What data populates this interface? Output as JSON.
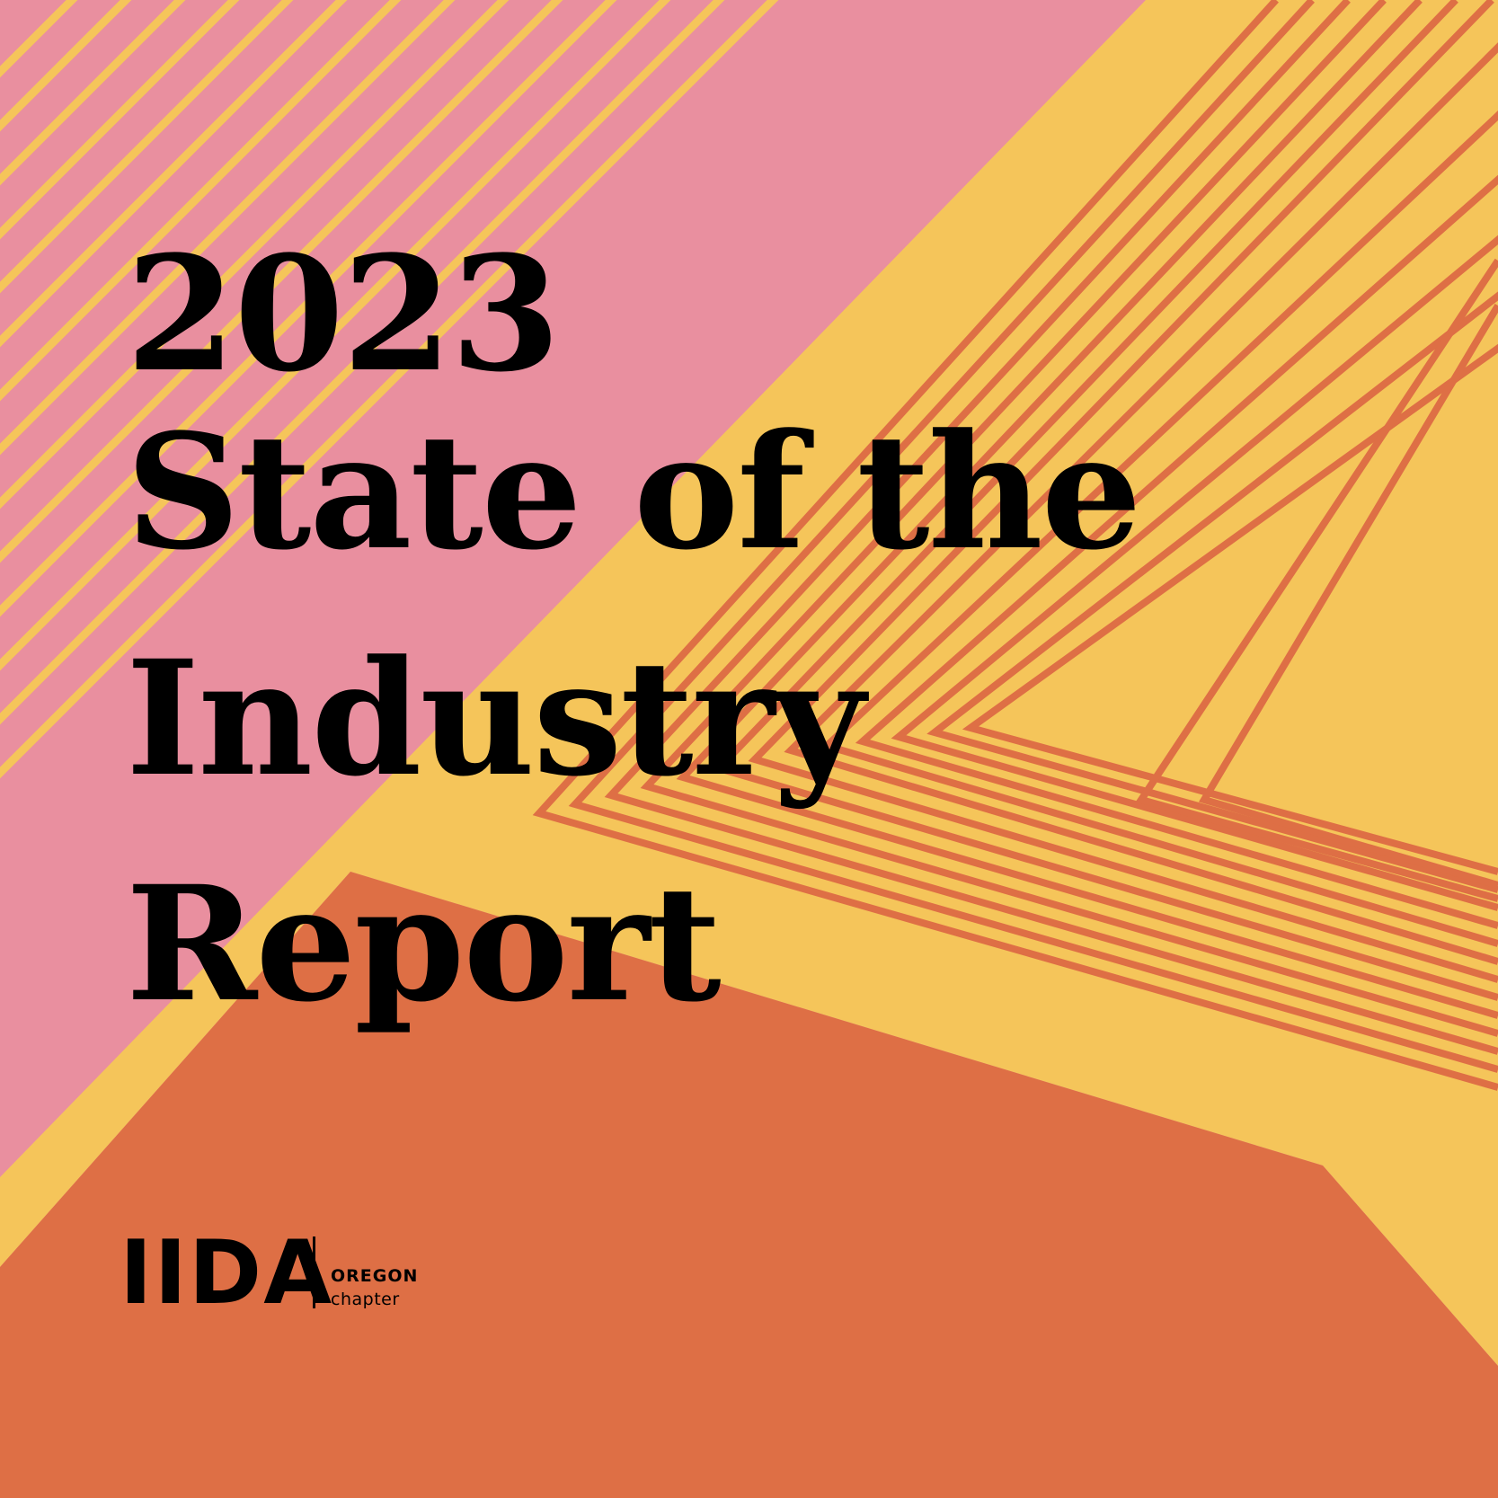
{
  "colors": {
    "pink": "#e98f9f",
    "yellow": "#f5c55a",
    "orange": "#de6f45",
    "text": "#000000"
  },
  "title": {
    "line1": "2023",
    "line2": "State of the",
    "line3": "Industry",
    "line4": "Report"
  },
  "logo": {
    "wordmark": "IIDA",
    "region": "OREGON",
    "subtitle": "chapter"
  }
}
